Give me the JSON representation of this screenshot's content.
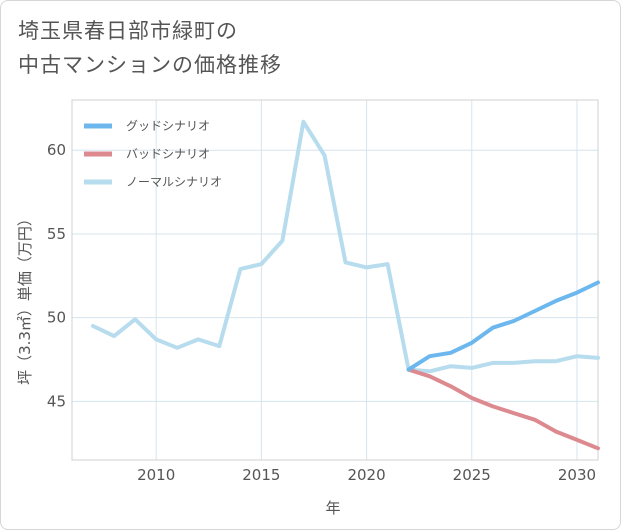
{
  "title_line1": "埼玉県春日部市緑町の",
  "title_line2": "中古マンションの価格推移",
  "chart_data": {
    "type": "line",
    "xlabel": "年",
    "ylabel": "坪（3.3㎡）単価（万円）",
    "xlim": [
      2006,
      2031
    ],
    "ylim": [
      41.5,
      63
    ],
    "x_ticks": [
      2010,
      2015,
      2020,
      2025,
      2030
    ],
    "y_ticks": [
      45,
      50,
      55,
      60
    ],
    "grid": true,
    "legend_position": "top-left",
    "series": [
      {
        "name": "グッドシナリオ",
        "color": "#6cb8ee",
        "x": [
          2022,
          2023,
          2024,
          2025,
          2026,
          2027,
          2028,
          2029,
          2030,
          2031
        ],
        "values": [
          46.9,
          47.7,
          47.9,
          48.5,
          49.4,
          49.8,
          50.4,
          51.0,
          51.5,
          52.1
        ]
      },
      {
        "name": "バッドシナリオ",
        "color": "#dc8a90",
        "x": [
          2022,
          2023,
          2024,
          2025,
          2026,
          2027,
          2028,
          2029,
          2030,
          2031
        ],
        "values": [
          46.9,
          46.5,
          45.9,
          45.2,
          44.7,
          44.3,
          43.9,
          43.2,
          42.7,
          42.2
        ]
      },
      {
        "name": "ノーマルシナリオ",
        "color": "#b6dced",
        "x": [
          2007,
          2008,
          2009,
          2010,
          2011,
          2012,
          2013,
          2014,
          2015,
          2016,
          2017,
          2018,
          2019,
          2020,
          2021,
          2022,
          2023,
          2024,
          2025,
          2026,
          2027,
          2028,
          2029,
          2030,
          2031
        ],
        "values": [
          49.5,
          48.9,
          49.9,
          48.7,
          48.2,
          48.7,
          48.3,
          52.9,
          53.2,
          54.6,
          61.7,
          59.7,
          53.3,
          53.0,
          53.2,
          46.9,
          46.8,
          47.1,
          47.0,
          47.3,
          47.3,
          47.4,
          47.4,
          47.7,
          47.6
        ]
      }
    ]
  }
}
